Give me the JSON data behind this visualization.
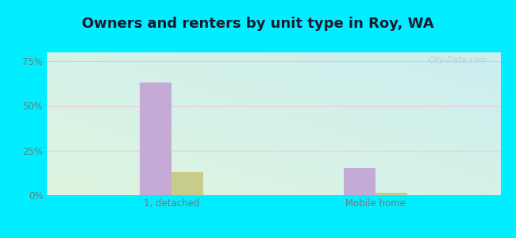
{
  "title": "Owners and renters by unit type in Roy, WA",
  "categories": [
    "1, detached",
    "Mobile home"
  ],
  "owner_values": [
    63.0,
    15.0
  ],
  "renter_values": [
    13.0,
    1.5
  ],
  "owner_color": "#c4aad4",
  "renter_color": "#c8cc8a",
  "outer_bg": "#00eeff",
  "yticks": [
    0,
    25,
    50,
    75
  ],
  "ytick_labels": [
    "0%",
    "25%",
    "50%",
    "75%"
  ],
  "ylim": [
    0,
    80
  ],
  "title_fontsize": 13,
  "title_color": "#1a1a2e",
  "watermark": "City-Data.com",
  "bar_width": 0.28,
  "tick_color": "#777777",
  "grid_color": "#e8c8d0",
  "bg_left": "#dff5e0",
  "bg_right": "#cce8e8"
}
